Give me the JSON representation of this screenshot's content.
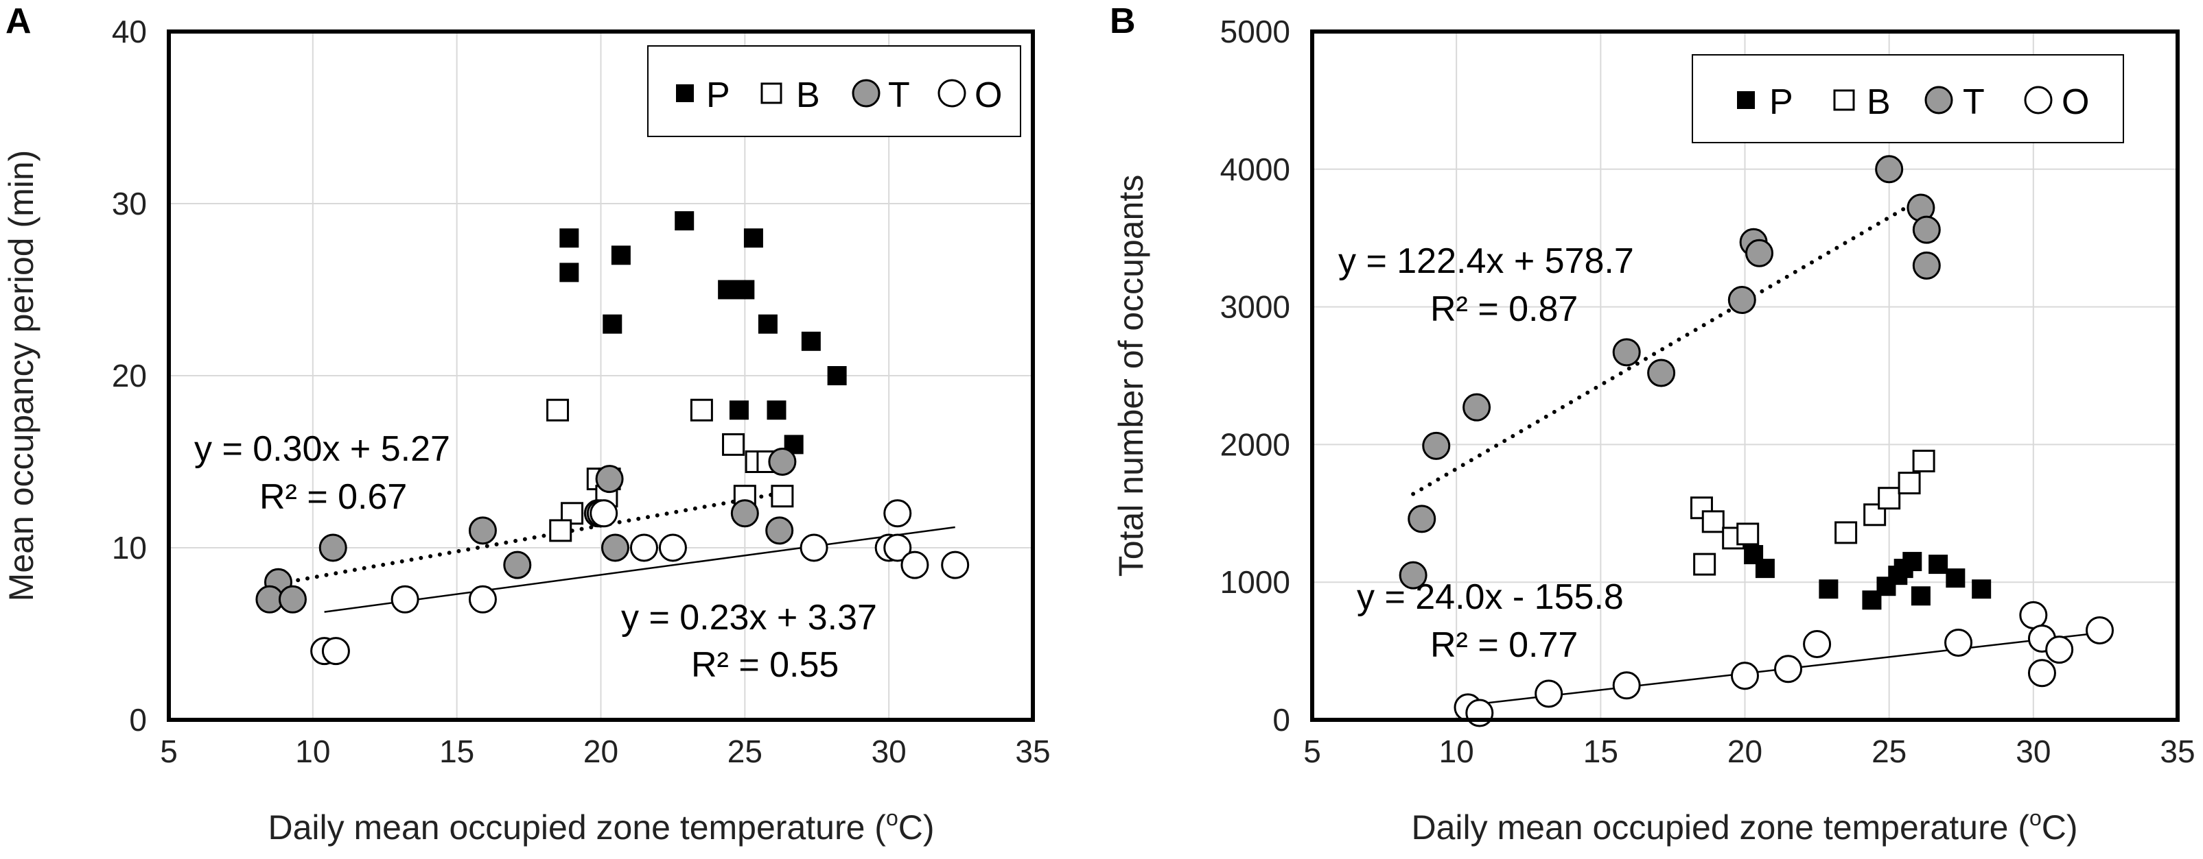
{
  "chart_data": [
    {
      "type": "scatter",
      "panel": "A",
      "xlabel_main": "Daily mean occupied zone temperature (",
      "xlabel_sup": "o",
      "xlabel_tail": "C)",
      "ylabel": "Mean occupancy period (min)",
      "xlim": [
        5,
        35
      ],
      "ylim": [
        0,
        40
      ],
      "xticks": [
        "5",
        "10",
        "15",
        "20",
        "25",
        "30",
        "35"
      ],
      "yticks": [
        "0",
        "10",
        "20",
        "30",
        "40"
      ],
      "grid": true,
      "legend_position": "top-right",
      "legend": [
        {
          "key": "P",
          "label": "P",
          "marker": "filled-square"
        },
        {
          "key": "B",
          "label": "B",
          "marker": "open-square"
        },
        {
          "key": "T",
          "label": "T",
          "marker": "gray-circle"
        },
        {
          "key": "O",
          "label": "O",
          "marker": "open-circle"
        }
      ],
      "series": [
        {
          "name": "P",
          "points": [
            [
              18.9,
              28
            ],
            [
              18.9,
              26
            ],
            [
              20.7,
              27
            ],
            [
              20.4,
              23
            ],
            [
              22.9,
              29
            ],
            [
              25.3,
              28
            ],
            [
              24.4,
              25
            ],
            [
              25.0,
              25
            ],
            [
              25.8,
              23
            ],
            [
              27.3,
              22
            ],
            [
              28.2,
              20
            ],
            [
              24.8,
              18
            ],
            [
              26.1,
              18
            ],
            [
              26.7,
              16
            ],
            [
              26.3,
              13
            ]
          ]
        },
        {
          "name": "B",
          "points": [
            [
              18.5,
              18
            ],
            [
              19.9,
              14
            ],
            [
              20.3,
              14
            ],
            [
              19.0,
              12
            ],
            [
              20.2,
              13
            ],
            [
              18.6,
              11
            ],
            [
              23.5,
              18
            ],
            [
              24.6,
              16
            ],
            [
              25.4,
              15
            ],
            [
              25.8,
              15
            ],
            [
              25.0,
              13
            ],
            [
              26.3,
              13
            ]
          ]
        },
        {
          "name": "T",
          "points": [
            [
              8.8,
              8
            ],
            [
              8.5,
              7
            ],
            [
              9.3,
              7
            ],
            [
              10.7,
              10
            ],
            [
              15.9,
              11
            ],
            [
              17.1,
              9
            ],
            [
              19.9,
              12
            ],
            [
              20.3,
              14
            ],
            [
              20.5,
              10
            ],
            [
              25.0,
              12
            ],
            [
              26.3,
              15
            ],
            [
              26.2,
              11
            ]
          ]
        },
        {
          "name": "O",
          "points": [
            [
              10.4,
              4
            ],
            [
              10.8,
              4
            ],
            [
              13.2,
              7
            ],
            [
              15.9,
              7
            ],
            [
              20.0,
              12
            ],
            [
              20.1,
              12
            ],
            [
              21.5,
              10
            ],
            [
              22.5,
              10
            ],
            [
              27.4,
              10
            ],
            [
              30.0,
              10
            ],
            [
              30.3,
              10
            ],
            [
              30.3,
              12
            ],
            [
              30.9,
              9
            ],
            [
              32.3,
              9
            ]
          ]
        }
      ],
      "trendlines": [
        {
          "series": "T",
          "style": "dotted",
          "x": [
            8.5,
            26.3
          ],
          "equation": "y = 0.30x + 5.27",
          "r2": "R² = 0.67"
        },
        {
          "series": "O",
          "style": "solid",
          "x": [
            10.4,
            32.3
          ],
          "equation": "y = 0.23x + 3.37",
          "r2": "R² = 0.55"
        }
      ]
    },
    {
      "type": "scatter",
      "panel": "B",
      "xlabel_main": "Daily mean occupied zone temperature (",
      "xlabel_sup": "o",
      "xlabel_tail": "C)",
      "ylabel": "Total number of occupants",
      "xlim": [
        5,
        35
      ],
      "ylim": [
        0,
        5000
      ],
      "xticks": [
        "5",
        "10",
        "15",
        "20",
        "25",
        "30",
        "35"
      ],
      "yticks": [
        "0",
        "1000",
        "2000",
        "3000",
        "4000",
        "5000"
      ],
      "grid": true,
      "legend_position": "top-right",
      "legend": [
        {
          "key": "P",
          "label": "P",
          "marker": "filled-square"
        },
        {
          "key": "B",
          "label": "B",
          "marker": "open-square"
        },
        {
          "key": "T",
          "label": "T",
          "marker": "gray-circle"
        },
        {
          "key": "O",
          "label": "O",
          "marker": "open-circle"
        }
      ],
      "series": [
        {
          "name": "P",
          "points": [
            [
              20.7,
              1100
            ],
            [
              20.3,
              1200
            ],
            [
              22.9,
              950
            ],
            [
              24.4,
              870
            ],
            [
              24.9,
              970
            ],
            [
              25.3,
              1050
            ],
            [
              25.8,
              1150
            ],
            [
              26.1,
              900
            ],
            [
              26.7,
              1130
            ],
            [
              27.3,
              1030
            ],
            [
              28.2,
              950
            ],
            [
              25.5,
              1100
            ]
          ]
        },
        {
          "name": "B",
          "points": [
            [
              18.5,
              1540
            ],
            [
              18.9,
              1440
            ],
            [
              19.6,
              1320
            ],
            [
              20.1,
              1350
            ],
            [
              18.6,
              1130
            ],
            [
              23.5,
              1360
            ],
            [
              24.5,
              1490
            ],
            [
              25.0,
              1610
            ],
            [
              25.7,
              1720
            ],
            [
              26.2,
              1880
            ]
          ]
        },
        {
          "name": "T",
          "points": [
            [
              8.5,
              1050
            ],
            [
              8.8,
              1460
            ],
            [
              9.3,
              1990
            ],
            [
              10.7,
              2270
            ],
            [
              15.9,
              2670
            ],
            [
              17.1,
              2520
            ],
            [
              19.9,
              3050
            ],
            [
              20.3,
              3470
            ],
            [
              20.5,
              3390
            ],
            [
              25.0,
              4000
            ],
            [
              26.1,
              3720
            ],
            [
              26.3,
              3560
            ],
            [
              26.3,
              3300
            ]
          ]
        },
        {
          "name": "O",
          "points": [
            [
              10.4,
              90
            ],
            [
              10.8,
              50
            ],
            [
              13.2,
              190
            ],
            [
              15.9,
              250
            ],
            [
              20.0,
              320
            ],
            [
              21.5,
              370
            ],
            [
              22.5,
              550
            ],
            [
              27.4,
              560
            ],
            [
              30.0,
              760
            ],
            [
              30.3,
              590
            ],
            [
              30.3,
              340
            ],
            [
              30.9,
              510
            ],
            [
              32.3,
              650
            ]
          ]
        }
      ],
      "trendlines": [
        {
          "series": "T",
          "style": "dotted",
          "x": [
            8.5,
            26.3
          ],
          "equation": "y = 122.4x + 578.7",
          "r2": "R² = 0.87"
        },
        {
          "series": "O",
          "style": "solid",
          "x": [
            10.4,
            32.3
          ],
          "equation": "y = 24.0x - 155.8",
          "r2": "R² = 0.77"
        }
      ]
    }
  ]
}
